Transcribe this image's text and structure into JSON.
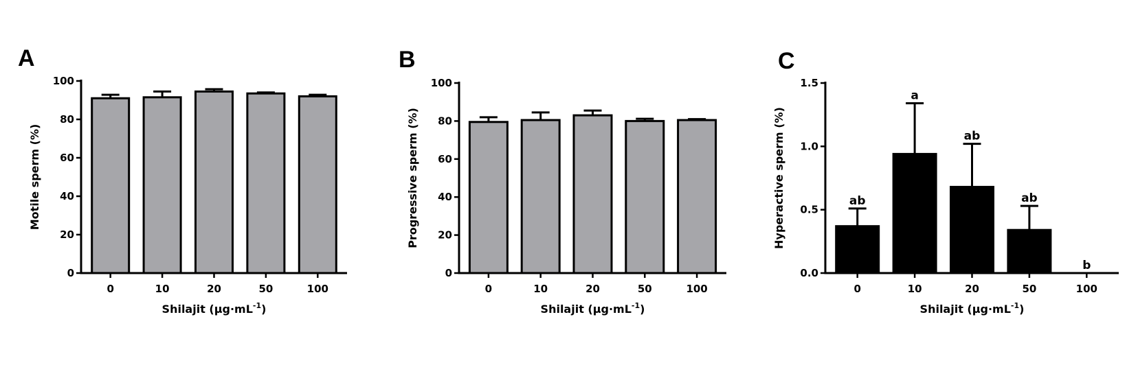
{
  "chart_data": [
    {
      "panel_label": "A",
      "type": "bar",
      "categories": [
        "0",
        "10",
        "20",
        "50",
        "100"
      ],
      "values": [
        91,
        91.5,
        94.5,
        93.5,
        92
      ],
      "errors": [
        1.8,
        3,
        1.2,
        0.5,
        0.8
      ],
      "xlabel": "Shilajit (µg·mL",
      "xlabel_sup": "-1",
      "xlabel_suffix": ")",
      "ylabel": "Motile sperm (%)",
      "ylim": [
        0,
        100
      ],
      "yticks": [
        "0",
        "20",
        "40",
        "60",
        "80",
        "100"
      ],
      "bar_color": "#a6a6aa",
      "sig_labels": []
    },
    {
      "panel_label": "B",
      "type": "bar",
      "categories": [
        "0",
        "10",
        "20",
        "50",
        "100"
      ],
      "values": [
        79.5,
        80.5,
        83,
        80,
        80.5
      ],
      "errors": [
        2.5,
        4,
        2.5,
        1.2,
        0.5
      ],
      "xlabel": "Shilajit (µg·mL",
      "xlabel_sup": "-1",
      "xlabel_suffix": ")",
      "ylabel": "Progressive sperm (%)",
      "ylim": [
        0,
        100
      ],
      "yticks": [
        "0",
        "20",
        "40",
        "60",
        "80",
        "100"
      ],
      "bar_color": "#a6a6aa",
      "sig_labels": []
    },
    {
      "panel_label": "C",
      "type": "bar",
      "categories": [
        "0",
        "10",
        "20",
        "50",
        "100"
      ],
      "values": [
        0.37,
        0.94,
        0.68,
        0.34,
        0
      ],
      "errors": [
        0.14,
        0.4,
        0.34,
        0.19,
        0
      ],
      "xlabel": "Shilajit (µg·mL",
      "xlabel_sup": "-1",
      "xlabel_suffix": ")",
      "ylabel": "Hyperactive sperm (%)",
      "ylim": [
        0,
        1.5
      ],
      "yticks": [
        "0.0",
        "0.5",
        "1.0",
        "1.5"
      ],
      "bar_color": "#000000",
      "sig_labels": [
        "ab",
        "a",
        "ab",
        "ab",
        "b"
      ]
    }
  ]
}
